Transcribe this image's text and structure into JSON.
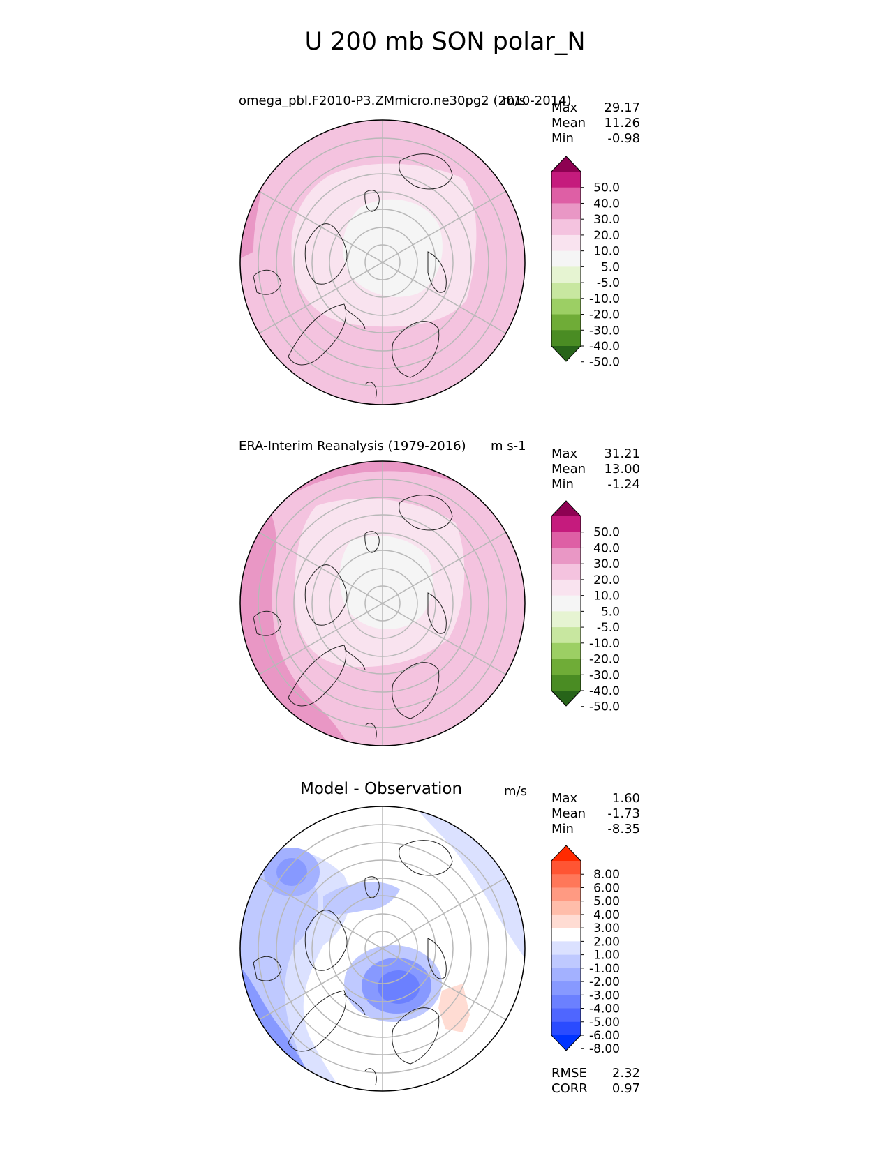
{
  "figure": {
    "title": "U 200 mb SON polar_N"
  },
  "panels": [
    {
      "title": "omega_pbl.F2010-P3.ZMmicro.ne30pg2 (2010-2014)",
      "units": "m/s",
      "stats": {
        "max_label": "Max",
        "max": "29.17",
        "mean_label": "Mean",
        "mean": "11.26",
        "min_label": "Min",
        "min": "-0.98"
      },
      "colorbar": {
        "ticks": [
          "50.0",
          "40.0",
          "30.0",
          "20.0",
          "10.0",
          "5.0",
          "-5.0",
          "-10.0",
          "-20.0",
          "-30.0",
          "-40.0",
          "-50.0"
        ],
        "colors": [
          "#8e0152",
          "#c51b7d",
          "#de5fa5",
          "#e997c5",
          "#f4c3df",
          "#f9e3ef",
          "#f5f5f5",
          "#e6f4d2",
          "#c8e7a0",
          "#9ccf64",
          "#6fac37",
          "#4a8c23",
          "#276419"
        ]
      }
    },
    {
      "title": "ERA-Interim Reanalysis (1979-2016)",
      "units": "m s-1",
      "stats": {
        "max_label": "Max",
        "max": "31.21",
        "mean_label": "Mean",
        "mean": "13.00",
        "min_label": "Min",
        "min": "-1.24"
      },
      "colorbar": {
        "ticks": [
          "50.0",
          "40.0",
          "30.0",
          "20.0",
          "10.0",
          "5.0",
          "-5.0",
          "-10.0",
          "-20.0",
          "-30.0",
          "-40.0",
          "-50.0"
        ],
        "colors": [
          "#8e0152",
          "#c51b7d",
          "#de5fa5",
          "#e997c5",
          "#f4c3df",
          "#f9e3ef",
          "#f5f5f5",
          "#e6f4d2",
          "#c8e7a0",
          "#9ccf64",
          "#6fac37",
          "#4a8c23",
          "#276419"
        ]
      }
    },
    {
      "title": "Model - Observation",
      "units": "m/s",
      "stats": {
        "max_label": "Max",
        "max": "1.60",
        "mean_label": "Mean",
        "mean": "-1.73",
        "min_label": "Min",
        "min": "-8.35"
      },
      "colorbar": {
        "ticks": [
          "8.00",
          "6.00",
          "5.00",
          "4.00",
          "3.00",
          "2.00",
          "1.00",
          "-1.00",
          "-2.00",
          "-3.00",
          "-4.00",
          "-5.00",
          "-6.00",
          "-8.00"
        ],
        "colors": [
          "#ff2a00",
          "#ff5533",
          "#ff7759",
          "#ff9a82",
          "#ffbdaa",
          "#ffdcd3",
          "#ffffff",
          "#dbe1ff",
          "#bfc9ff",
          "#a3b1ff",
          "#8799ff",
          "#6b80ff",
          "#4f66ff",
          "#2a4bff",
          "#0033ff"
        ]
      },
      "error_stats": {
        "rmse_label": "RMSE",
        "rmse": "2.32",
        "corr_label": "CORR",
        "corr": "0.97"
      }
    }
  ]
}
